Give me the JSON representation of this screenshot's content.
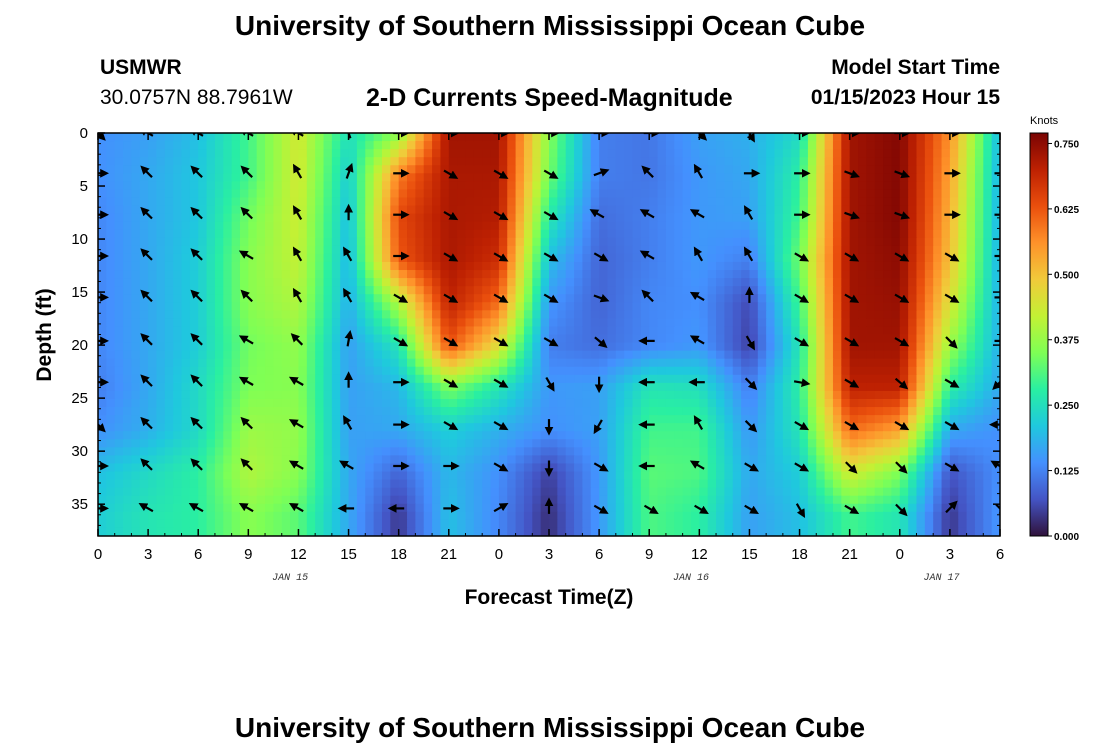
{
  "page": {
    "title": "University of Southern Mississippi Ocean Cube",
    "footer_title": "University of Southern Mississippi Ocean Cube"
  },
  "header": {
    "station": "USMWR",
    "coords": "30.0757N  88.7961W",
    "subtitle": "2-D Currents Speed-Magnitude",
    "model_label": "Model Start Time",
    "model_time": "01/15/2023 Hour 15"
  },
  "chart_data": {
    "type": "heatmap",
    "title": "2-D Currents Speed-Magnitude",
    "xlabel": "Forecast Time(Z)",
    "ylabel": "Depth (ft)",
    "x_ticks": [
      "0",
      "3",
      "6",
      "9",
      "12",
      "15",
      "18",
      "21",
      "0",
      "3",
      "6",
      "9",
      "12",
      "15",
      "18",
      "21",
      "0",
      "3",
      "6"
    ],
    "x_range_hours": [
      0,
      54
    ],
    "date_labels": [
      {
        "text": "JAN 15",
        "hour": 11.5
      },
      {
        "text": "JAN 16",
        "hour": 35.5
      },
      {
        "text": "JAN 17",
        "hour": 50.5
      }
    ],
    "y_ticks": [
      0,
      5,
      10,
      15,
      20,
      25,
      30,
      35
    ],
    "y_range": [
      0,
      38
    ],
    "colorbar": {
      "unit": "Knots",
      "ticks": [
        "0.000",
        "0.125",
        "0.250",
        "0.375",
        "0.500",
        "0.625",
        "0.750"
      ],
      "range": [
        0,
        0.77
      ],
      "colors": [
        "#30123b",
        "#4454c4",
        "#4490fe",
        "#1fc8de",
        "#29efa2",
        "#7eff55",
        "#c3f134",
        "#f1ca3a",
        "#fe922a",
        "#ea4f0d",
        "#be2102",
        "#7a0403"
      ]
    },
    "cells": {
      "hours": [
        0,
        3,
        6,
        9,
        12,
        15,
        18,
        21,
        24,
        27,
        30,
        33,
        36,
        39,
        42,
        45,
        48,
        51,
        54
      ],
      "depths": [
        0,
        4,
        8,
        12,
        16,
        20,
        24,
        28,
        32,
        36
      ],
      "speed_knots": [
        [
          0.14,
          0.16,
          0.2,
          0.3,
          0.44,
          0.25,
          0.36,
          0.73,
          0.73,
          0.36,
          0.12,
          0.11,
          0.16,
          0.18,
          0.24,
          0.73,
          0.76,
          0.56,
          0.19
        ],
        [
          0.14,
          0.17,
          0.21,
          0.3,
          0.44,
          0.22,
          0.58,
          0.72,
          0.72,
          0.34,
          0.12,
          0.11,
          0.15,
          0.17,
          0.28,
          0.73,
          0.76,
          0.54,
          0.18
        ],
        [
          0.13,
          0.17,
          0.21,
          0.34,
          0.43,
          0.2,
          0.64,
          0.72,
          0.71,
          0.27,
          0.1,
          0.12,
          0.15,
          0.16,
          0.3,
          0.73,
          0.76,
          0.52,
          0.18
        ],
        [
          0.13,
          0.17,
          0.22,
          0.36,
          0.42,
          0.19,
          0.62,
          0.72,
          0.68,
          0.2,
          0.09,
          0.12,
          0.15,
          0.12,
          0.34,
          0.73,
          0.75,
          0.5,
          0.18
        ],
        [
          0.13,
          0.17,
          0.22,
          0.36,
          0.4,
          0.18,
          0.4,
          0.7,
          0.6,
          0.15,
          0.09,
          0.13,
          0.14,
          0.06,
          0.3,
          0.73,
          0.74,
          0.45,
          0.18
        ],
        [
          0.13,
          0.17,
          0.22,
          0.34,
          0.37,
          0.16,
          0.26,
          0.63,
          0.46,
          0.12,
          0.1,
          0.13,
          0.15,
          0.05,
          0.26,
          0.73,
          0.73,
          0.38,
          0.18
        ],
        [
          0.12,
          0.17,
          0.24,
          0.35,
          0.36,
          0.16,
          0.19,
          0.35,
          0.26,
          0.15,
          0.16,
          0.26,
          0.25,
          0.12,
          0.28,
          0.7,
          0.7,
          0.28,
          0.17
        ],
        [
          0.14,
          0.18,
          0.24,
          0.38,
          0.37,
          0.16,
          0.17,
          0.22,
          0.18,
          0.14,
          0.16,
          0.3,
          0.3,
          0.15,
          0.26,
          0.6,
          0.54,
          0.17,
          0.14
        ],
        [
          0.2,
          0.24,
          0.28,
          0.4,
          0.36,
          0.17,
          0.09,
          0.19,
          0.14,
          0.05,
          0.15,
          0.32,
          0.31,
          0.17,
          0.22,
          0.44,
          0.35,
          0.07,
          0.14
        ],
        [
          0.22,
          0.26,
          0.28,
          0.36,
          0.32,
          0.17,
          0.04,
          0.2,
          0.13,
          0.03,
          0.15,
          0.31,
          0.28,
          0.16,
          0.2,
          0.3,
          0.26,
          0.04,
          0.15
        ]
      ]
    },
    "vectors": {
      "hours": [
        0,
        3,
        6,
        9,
        12,
        15,
        18,
        21,
        24,
        27,
        30,
        33,
        36,
        39,
        42,
        45,
        48,
        51,
        54
      ],
      "depths": [
        0,
        3.8,
        7.7,
        11.6,
        15.5,
        19.6,
        23.5,
        27.5,
        31.4,
        35.4
      ],
      "direction_deg": [
        [
          135,
          300,
          300,
          300,
          300,
          340,
          90,
          90,
          90,
          90,
          90,
          90,
          135,
          150,
          90,
          90,
          90,
          90,
          90
        ],
        [
          90,
          315,
          315,
          315,
          330,
          20,
          90,
          120,
          120,
          120,
          70,
          315,
          330,
          90,
          90,
          110,
          110,
          90,
          90
        ],
        [
          90,
          315,
          315,
          315,
          330,
          0,
          90,
          120,
          120,
          120,
          300,
          300,
          300,
          330,
          90,
          110,
          110,
          90,
          90
        ],
        [
          90,
          315,
          315,
          300,
          330,
          330,
          90,
          120,
          120,
          120,
          120,
          300,
          330,
          330,
          120,
          120,
          120,
          120,
          90
        ],
        [
          90,
          315,
          315,
          315,
          330,
          330,
          120,
          120,
          120,
          120,
          110,
          315,
          300,
          0,
          120,
          120,
          120,
          120,
          90
        ],
        [
          90,
          315,
          315,
          300,
          315,
          10,
          120,
          120,
          120,
          120,
          130,
          270,
          300,
          150,
          120,
          120,
          120,
          135,
          90
        ],
        [
          90,
          315,
          315,
          300,
          300,
          0,
          90,
          120,
          120,
          150,
          180,
          270,
          270,
          135,
          100,
          120,
          130,
          120,
          225
        ],
        [
          135,
          315,
          315,
          315,
          300,
          330,
          90,
          120,
          120,
          180,
          210,
          270,
          330,
          135,
          120,
          120,
          120,
          120,
          270
        ],
        [
          90,
          315,
          315,
          315,
          300,
          300,
          90,
          90,
          120,
          180,
          120,
          270,
          300,
          120,
          120,
          135,
          135,
          120,
          300
        ],
        [
          90,
          300,
          300,
          300,
          300,
          270,
          270,
          90,
          60,
          0,
          120,
          120,
          120,
          120,
          150,
          120,
          135,
          45,
          135
        ]
      ]
    }
  }
}
